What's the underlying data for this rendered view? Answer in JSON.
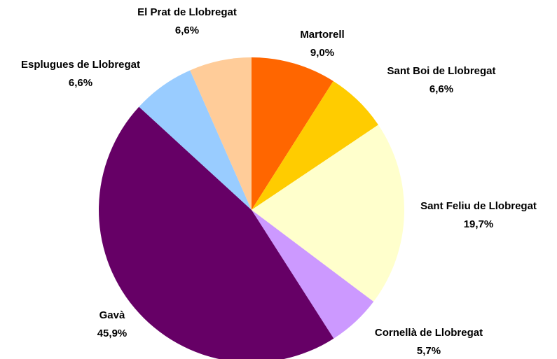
{
  "chart_data": {
    "type": "pie",
    "categories": [
      "Martorell",
      "Sant Boi de Llobregat",
      "Sant Feliu de Llobregat",
      "Cornellà de Llobregat",
      "Gavà",
      "Esplugues de Llobregat",
      "El Prat de Llobregat"
    ],
    "values": [
      9.0,
      6.6,
      19.7,
      5.7,
      45.9,
      6.6,
      6.6
    ],
    "value_labels": [
      "9,0%",
      "6,6%",
      "19,7%",
      "5,7%",
      "45,9%",
      "6,6%",
      "6,6%"
    ],
    "colors": [
      "#ff6600",
      "#ffcc00",
      "#ffffcc",
      "#cc99ff",
      "#660066",
      "#99ccff",
      "#ffcc99"
    ]
  }
}
